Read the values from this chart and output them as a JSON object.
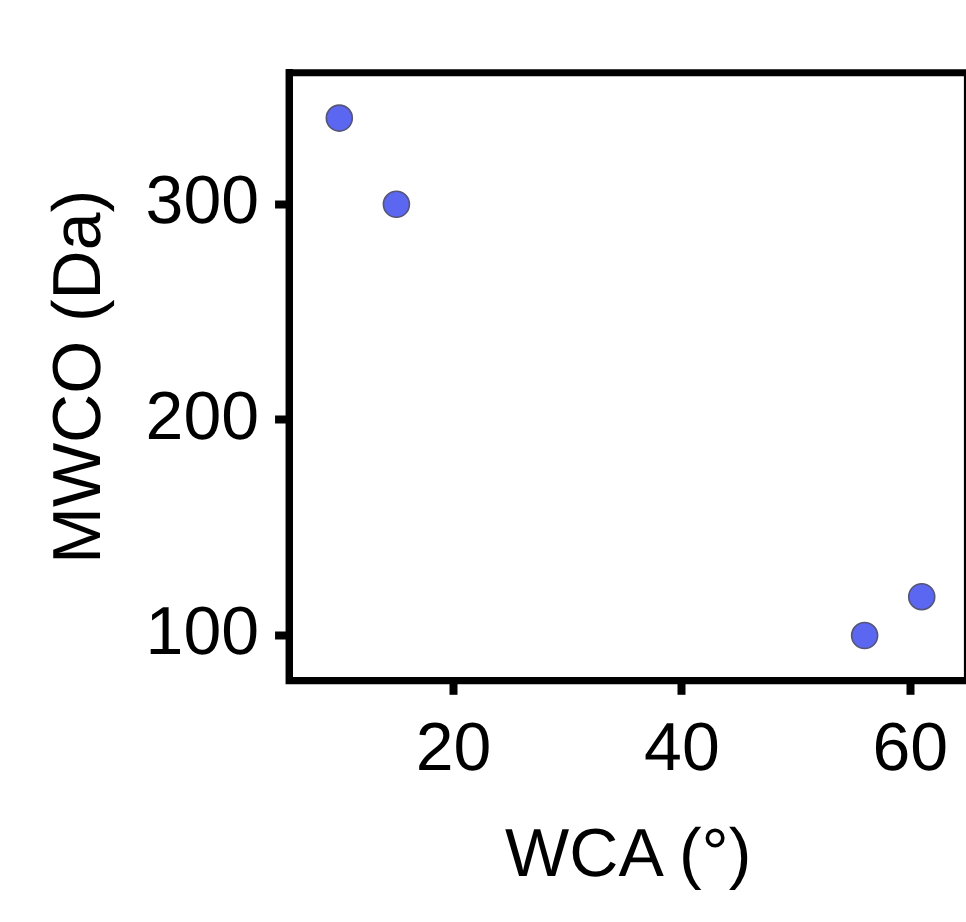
{
  "chart_data": {
    "type": "scatter",
    "xlabel": "WCA (°)",
    "ylabel": "MWCO (Da)",
    "x": [
      10,
      15,
      56,
      61
    ],
    "series": [
      {
        "color": "#5b67f0",
        "values": [
          340,
          300,
          100,
          118
        ]
      }
    ],
    "xlim": [
      5.6,
      65
    ],
    "xticks": [
      20,
      40,
      60
    ],
    "ylim": [
      79,
      361
    ],
    "yticks": [
      100,
      200,
      300
    ],
    "grid": false,
    "legend": false,
    "marker": "circle"
  }
}
